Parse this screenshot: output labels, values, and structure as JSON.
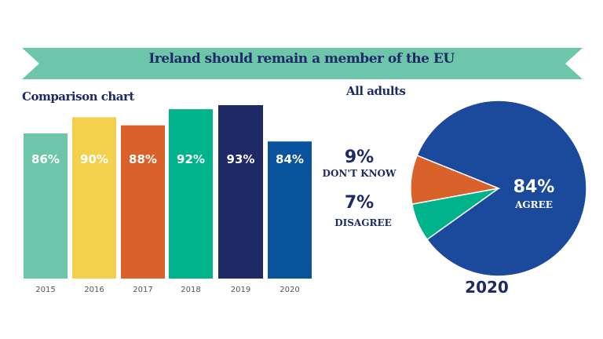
{
  "title": "Ireland should remain a member of the EU",
  "chart_data": [
    {
      "type": "bar",
      "title": "Comparison chart",
      "categories": [
        "2015",
        "2016",
        "2017",
        "2018",
        "2019",
        "2020"
      ],
      "values": [
        86,
        90,
        88,
        92,
        93,
        84
      ],
      "labels": [
        "86%",
        "90%",
        "88%",
        "92%",
        "93%",
        "84%"
      ],
      "colors": [
        "#6dc6a9",
        "#f3d04e",
        "#d9622b",
        "#00b38a",
        "#1e2a66",
        "#0a549e"
      ],
      "ylim": [
        50,
        100
      ]
    },
    {
      "type": "pie",
      "title": "All adults",
      "caption": "2020",
      "slices": [
        {
          "name": "AGREE",
          "value": 84,
          "label": "84%",
          "color": "#1b4a9c"
        },
        {
          "name": "DON'T KNOW",
          "value": 9,
          "label": "9%",
          "color": "#d9622b"
        },
        {
          "name": "DISAGREE",
          "value": 7,
          "label": "7%",
          "color": "#00b38a"
        }
      ]
    }
  ]
}
